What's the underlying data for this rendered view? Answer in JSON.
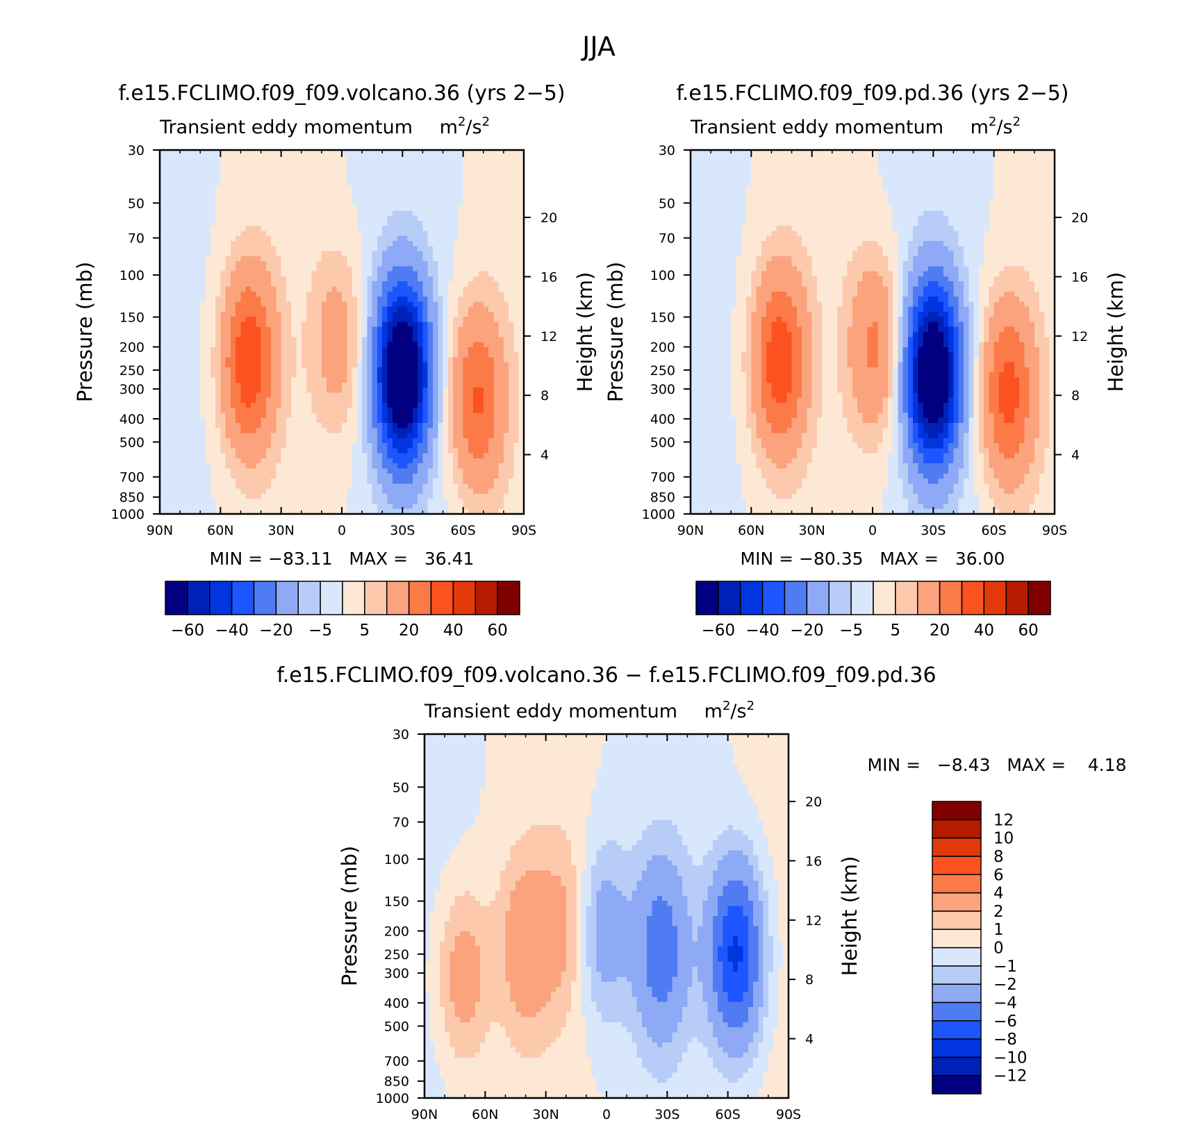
{
  "figure_title": "JJA",
  "chart_data": [
    {
      "type": "heatmap",
      "panel": "top-left",
      "title": "f.e15.FCLIMO.f09_f09.volcano.36 (yrs 2−5)",
      "subtitle": "Transient eddy momentum",
      "units_base": "m",
      "units_exp": "2",
      "units_mid": "/s",
      "ylabel": "Pressure (mb)",
      "y2label": "Height (km)",
      "xticks": [
        "90N",
        "60N",
        "30N",
        "0",
        "30S",
        "60S",
        "90S"
      ],
      "yticks": [
        "30",
        "50",
        "70",
        "100",
        "150",
        "200",
        "250",
        "300",
        "400",
        "500",
        "700",
        "850",
        "1000"
      ],
      "y2ticks": [
        "20",
        "16",
        "12",
        "8",
        "4"
      ],
      "stats": "MIN = −83.11   MAX =   36.41",
      "colorbar_labels": [
        "−60",
        "−40",
        "−20",
        "−5",
        "5",
        "20",
        "40",
        "60"
      ],
      "colorbar_colors": [
        "#000080",
        "#0021b7",
        "#0035e0",
        "#1d55ff",
        "#4f7cf2",
        "#8ea9f5",
        "#b7cdf8",
        "#d8e7fb",
        "#fde8d6",
        "#fcc9ad",
        "#fba37c",
        "#fb7a48",
        "#fc5220",
        "#e23a0a",
        "#b51b00",
        "#800000"
      ],
      "features": [
        {
          "lat": 46,
          "p": 230,
          "v": 36.41
        },
        {
          "lat": 2,
          "p": 190,
          "v": 14
        },
        {
          "lat": -30,
          "p": 260,
          "v": -83.11
        },
        {
          "lat": -67,
          "p": 330,
          "v": 30
        }
      ]
    },
    {
      "type": "heatmap",
      "panel": "top-right",
      "title": "f.e15.FCLIMO.f09_f09.pd.36 (yrs 2−5)",
      "subtitle": "Transient eddy momentum",
      "units_base": "m",
      "units_exp": "2",
      "units_mid": "/s",
      "ylabel": "Pressure (mb)",
      "y2label": "Height (km)",
      "xticks": [
        "90N",
        "60N",
        "30N",
        "0",
        "30S",
        "60S",
        "90S"
      ],
      "yticks": [
        "30",
        "50",
        "70",
        "100",
        "150",
        "200",
        "250",
        "300",
        "400",
        "500",
        "700",
        "850",
        "1000"
      ],
      "y2ticks": [
        "20",
        "16",
        "12",
        "8",
        "4"
      ],
      "stats": "MIN = −80.35   MAX =   36.00",
      "colorbar_labels": [
        "−60",
        "−40",
        "−20",
        "−5",
        "5",
        "20",
        "40",
        "60"
      ],
      "colorbar_colors": [
        "#000080",
        "#0021b7",
        "#0035e0",
        "#1d55ff",
        "#4f7cf2",
        "#8ea9f5",
        "#b7cdf8",
        "#d8e7fb",
        "#fde8d6",
        "#fcc9ad",
        "#fba37c",
        "#fb7a48",
        "#fc5220",
        "#e23a0a",
        "#b51b00",
        "#800000"
      ],
      "features": [
        {
          "lat": 46,
          "p": 230,
          "v": 36.0
        },
        {
          "lat": -1,
          "p": 200,
          "v": 22
        },
        {
          "lat": -30,
          "p": 260,
          "v": -80.35
        },
        {
          "lat": -67,
          "p": 310,
          "v": 33
        }
      ]
    },
    {
      "type": "heatmap",
      "panel": "bottom",
      "title": "f.e15.FCLIMO.f09_f09.volcano.36 − f.e15.FCLIMO.f09_f09.pd.36",
      "subtitle": "Transient eddy momentum",
      "units_base": "m",
      "units_exp": "2",
      "units_mid": "/s",
      "ylabel": "Pressure (mb)",
      "y2label": "Height (km)",
      "xticks": [
        "90N",
        "60N",
        "30N",
        "0",
        "30S",
        "60S",
        "90S"
      ],
      "yticks": [
        "30",
        "50",
        "70",
        "100",
        "150",
        "200",
        "250",
        "300",
        "400",
        "500",
        "700",
        "850",
        "1000"
      ],
      "y2ticks": [
        "20",
        "16",
        "12",
        "8",
        "4"
      ],
      "stats": "MIN =   −8.43   MAX =    4.18",
      "colorbar_labels": [
        "12",
        "10",
        "8",
        "6",
        "4",
        "2",
        "1",
        "0",
        "−1",
        "−2",
        "−4",
        "−6",
        "−8",
        "−10",
        "−12"
      ],
      "colorbar_colors": [
        "#000080",
        "#0021b7",
        "#0035e0",
        "#1d55ff",
        "#4f7cf2",
        "#8ea9f5",
        "#b7cdf8",
        "#d8e7fb",
        "#fde8d6",
        "#fcc9ad",
        "#fba37c",
        "#fb7a48",
        "#fc5220",
        "#e23a0a",
        "#b51b00",
        "#800000"
      ],
      "features": [
        {
          "lat": 71,
          "p": 310,
          "v": 3
        },
        {
          "lat": 40,
          "p": 230,
          "v": 3
        },
        {
          "lat": 20,
          "p": 190,
          "v": 2
        },
        {
          "lat": 2,
          "p": 200,
          "v": -3
        },
        {
          "lat": -27,
          "p": 240,
          "v": -5
        },
        {
          "lat": -64,
          "p": 250,
          "v": -8.43
        }
      ]
    }
  ]
}
